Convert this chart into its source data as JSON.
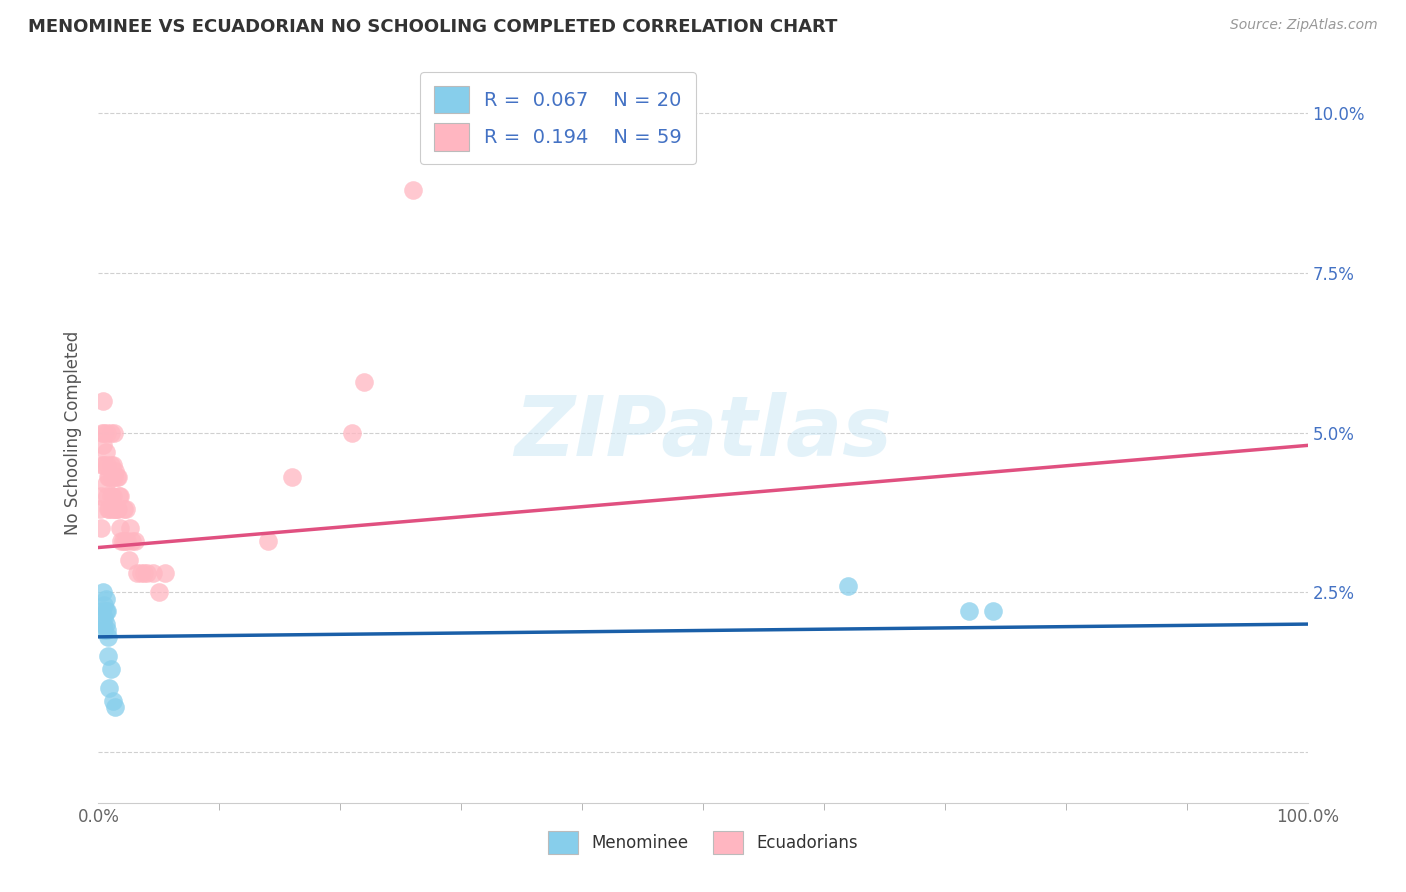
{
  "title": "MENOMINEE VS ECUADORIAN NO SCHOOLING COMPLETED CORRELATION CHART",
  "source": "Source: ZipAtlas.com",
  "ylabel": "No Schooling Completed",
  "xlim": [
    0,
    1.0
  ],
  "ylim": [
    -0.008,
    0.108
  ],
  "xtick_vals": [
    0.0,
    1.0
  ],
  "xtick_labels": [
    "0.0%",
    "100.0%"
  ],
  "ytick_vals": [
    0.0,
    0.025,
    0.05,
    0.075,
    0.1
  ],
  "ytick_labels_right": [
    "",
    "2.5%",
    "5.0%",
    "7.5%",
    "10.0%"
  ],
  "menominee_color": "#87CEEB",
  "ecuadorian_color": "#FFB6C1",
  "menominee_line_color": "#1a5fa8",
  "ecuadorian_line_color": "#e05080",
  "grid_color": "#d0d0d0",
  "background_color": "#ffffff",
  "menominee_x": [
    0.003,
    0.004,
    0.004,
    0.005,
    0.005,
    0.005,
    0.006,
    0.006,
    0.006,
    0.007,
    0.007,
    0.008,
    0.008,
    0.009,
    0.01,
    0.012,
    0.014,
    0.62,
    0.72,
    0.74
  ],
  "menominee_y": [
    0.022,
    0.025,
    0.02,
    0.023,
    0.021,
    0.019,
    0.024,
    0.022,
    0.02,
    0.022,
    0.019,
    0.018,
    0.015,
    0.01,
    0.013,
    0.008,
    0.007,
    0.026,
    0.022,
    0.022
  ],
  "ecuadorian_x": [
    0.001,
    0.002,
    0.002,
    0.003,
    0.003,
    0.004,
    0.004,
    0.005,
    0.005,
    0.006,
    0.006,
    0.007,
    0.007,
    0.007,
    0.008,
    0.008,
    0.009,
    0.009,
    0.01,
    0.01,
    0.01,
    0.011,
    0.011,
    0.012,
    0.012,
    0.013,
    0.013,
    0.013,
    0.014,
    0.014,
    0.015,
    0.015,
    0.016,
    0.016,
    0.017,
    0.018,
    0.018,
    0.019,
    0.02,
    0.021,
    0.022,
    0.023,
    0.024,
    0.025,
    0.026,
    0.028,
    0.03,
    0.032,
    0.035,
    0.038,
    0.04,
    0.045,
    0.05,
    0.055,
    0.14,
    0.16,
    0.21,
    0.22,
    0.26
  ],
  "ecuadorian_y": [
    0.038,
    0.04,
    0.035,
    0.045,
    0.05,
    0.048,
    0.055,
    0.045,
    0.05,
    0.042,
    0.047,
    0.04,
    0.045,
    0.05,
    0.038,
    0.043,
    0.038,
    0.043,
    0.04,
    0.045,
    0.05,
    0.038,
    0.043,
    0.04,
    0.045,
    0.038,
    0.043,
    0.05,
    0.038,
    0.044,
    0.038,
    0.043,
    0.038,
    0.043,
    0.04,
    0.035,
    0.04,
    0.033,
    0.033,
    0.038,
    0.033,
    0.038,
    0.033,
    0.03,
    0.035,
    0.033,
    0.033,
    0.028,
    0.028,
    0.028,
    0.028,
    0.028,
    0.025,
    0.028,
    0.033,
    0.043,
    0.05,
    0.058,
    0.088
  ],
  "menominee_line_x": [
    0.0,
    1.0
  ],
  "menominee_line_y": [
    0.018,
    0.02
  ],
  "ecuadorian_line_x": [
    0.0,
    1.0
  ],
  "ecuadorian_line_y": [
    0.032,
    0.048
  ]
}
